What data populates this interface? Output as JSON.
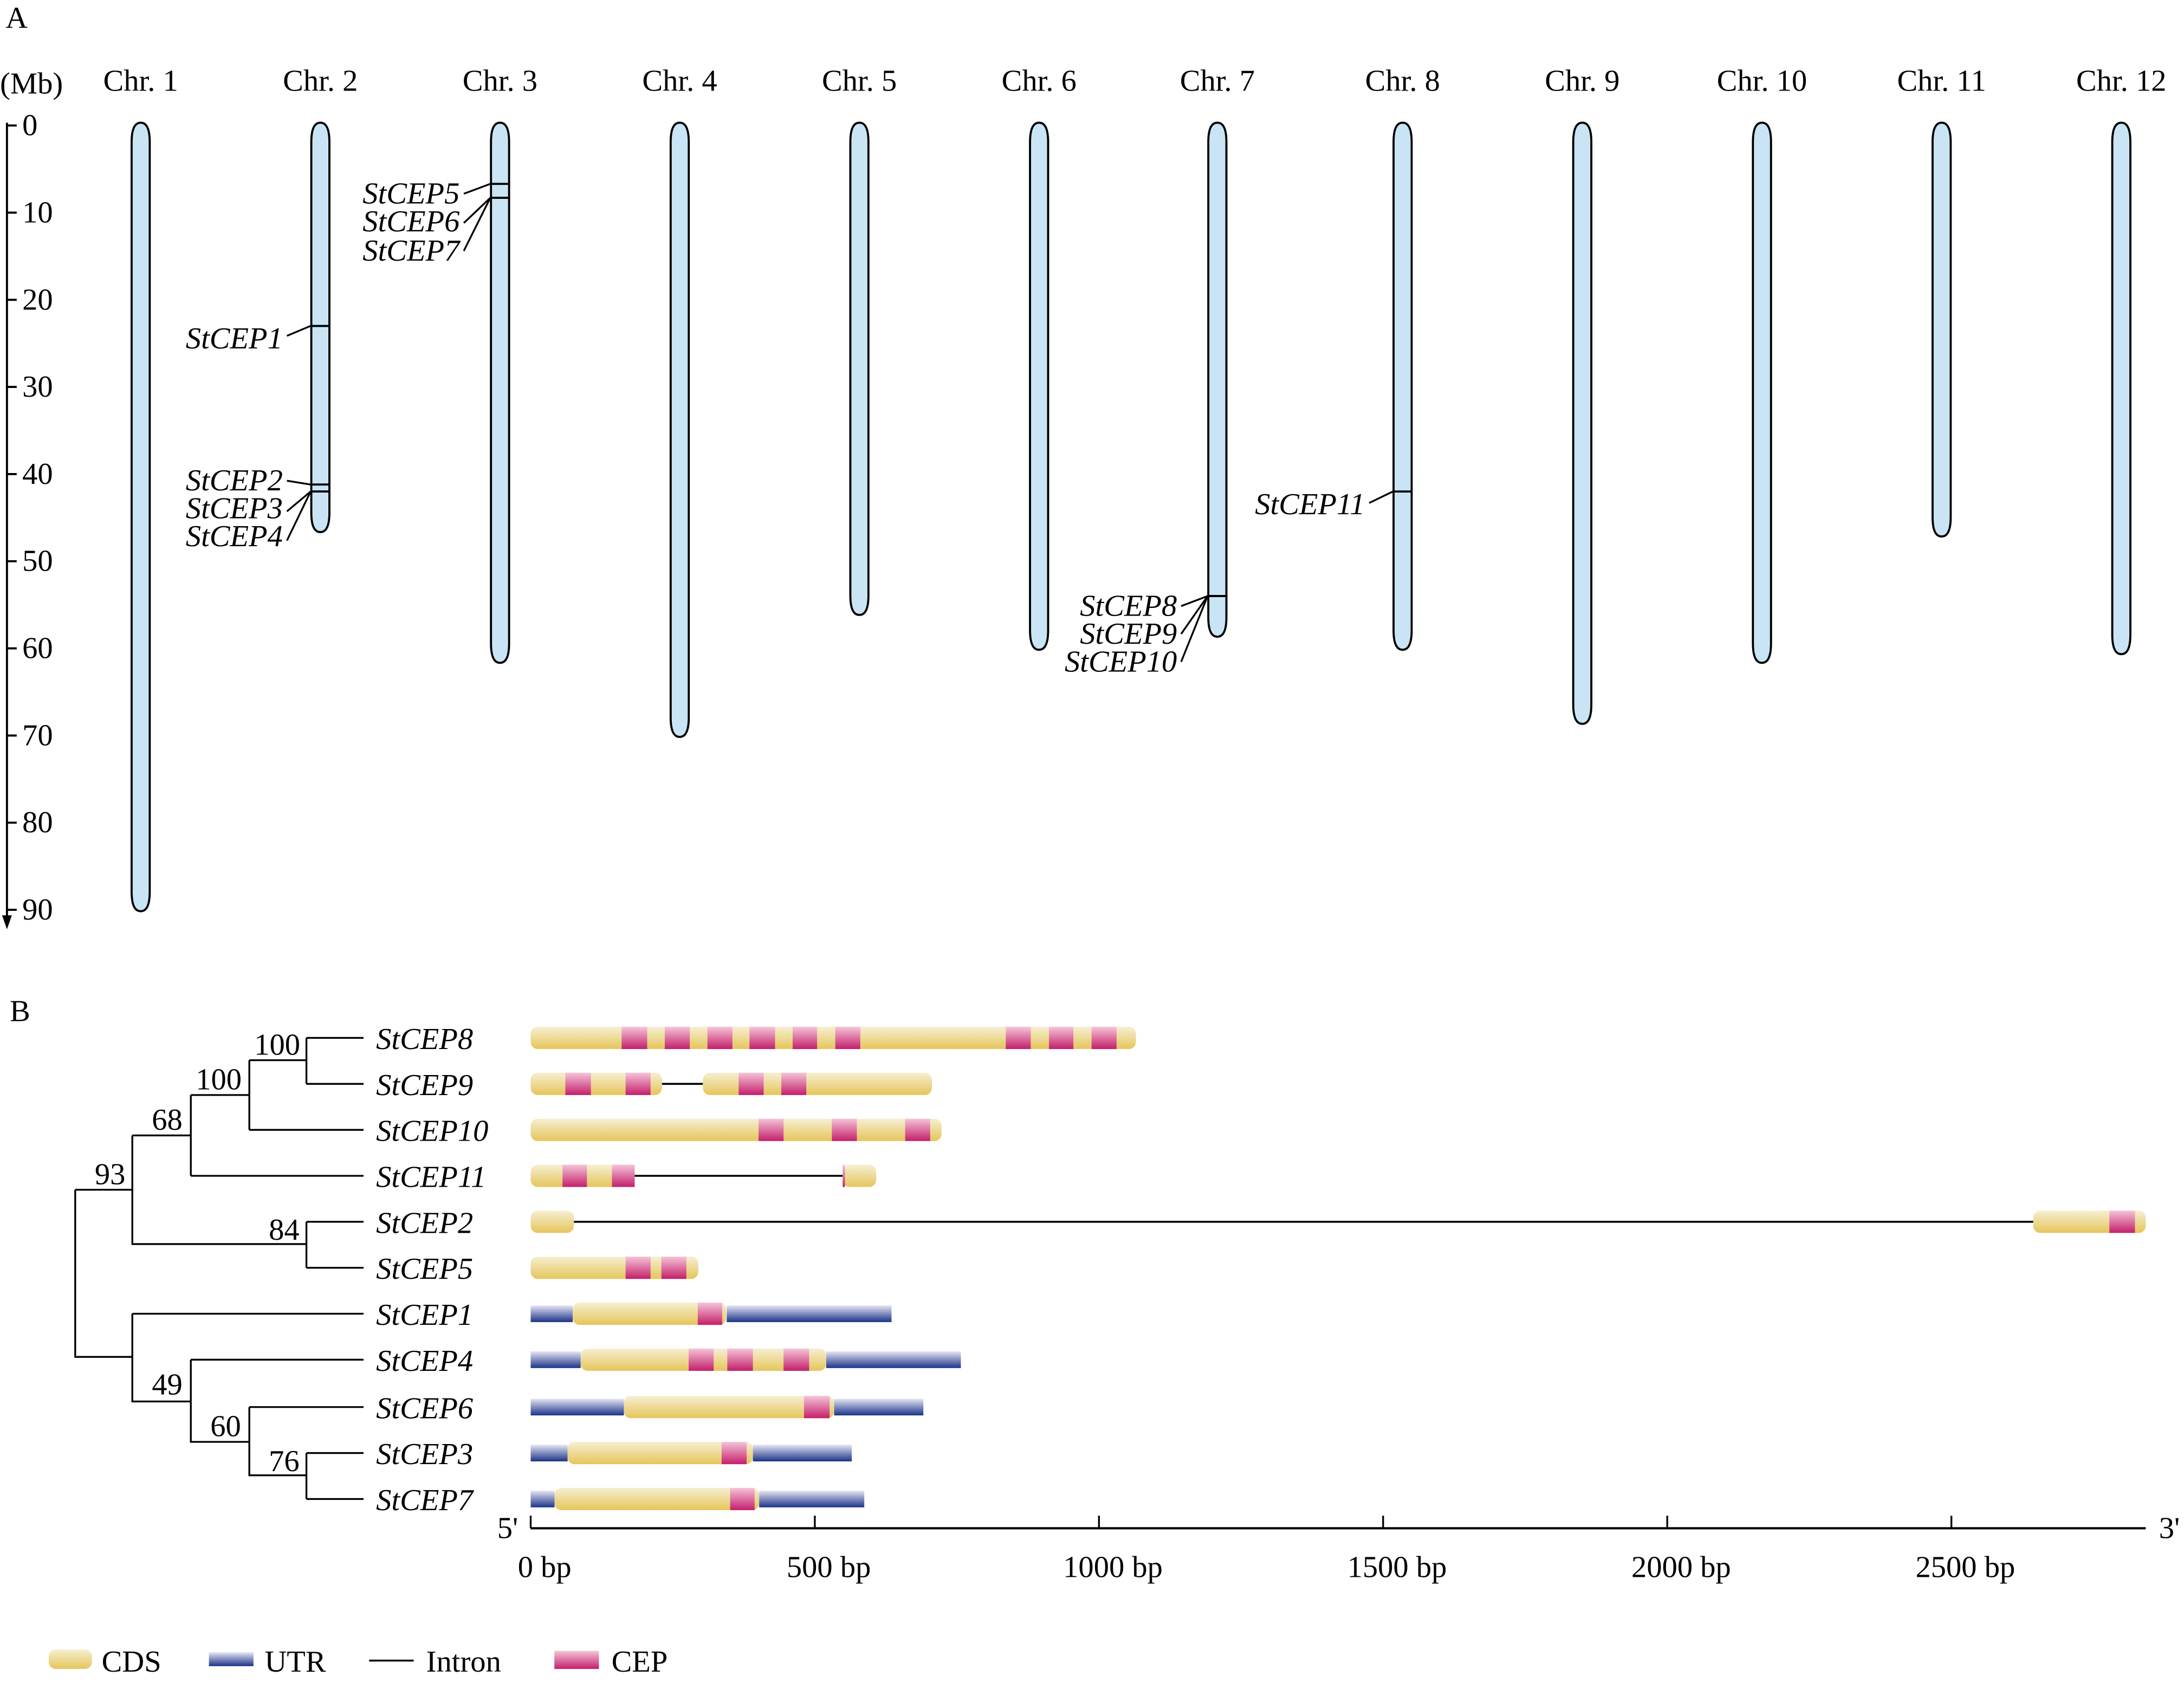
{
  "panels": {
    "a": "A",
    "b": "B"
  },
  "chromosome_map": {
    "unit_label": "(Mb)",
    "axis_ticks": [
      0,
      10,
      20,
      30,
      40,
      50,
      60,
      70,
      80,
      90
    ],
    "chromosomes": [
      {
        "label": "Chr. 1",
        "length_mb": 90
      },
      {
        "label": "Chr. 2",
        "length_mb": 46.5
      },
      {
        "label": "Chr. 3",
        "length_mb": 61.5
      },
      {
        "label": "Chr. 4",
        "length_mb": 70
      },
      {
        "label": "Chr. 5",
        "length_mb": 56
      },
      {
        "label": "Chr. 6",
        "length_mb": 60
      },
      {
        "label": "Chr. 7",
        "length_mb": 58.5
      },
      {
        "label": "Chr. 8",
        "length_mb": 60
      },
      {
        "label": "Chr. 9",
        "length_mb": 68.5
      },
      {
        "label": "Chr. 10",
        "length_mb": 61.5
      },
      {
        "label": "Chr. 11",
        "length_mb": 47
      },
      {
        "label": "Chr. 12",
        "length_mb": 60.5
      }
    ],
    "loci": [
      {
        "gene": "StCEP1",
        "chr": 2,
        "mb": 23
      },
      {
        "gene": "StCEP2",
        "chr": 2,
        "mb": 41.2
      },
      {
        "gene": "StCEP3",
        "chr": 2,
        "mb": 42
      },
      {
        "gene": "StCEP4",
        "chr": 2,
        "mb": 42
      },
      {
        "gene": "StCEP5",
        "chr": 3,
        "mb": 6.7
      },
      {
        "gene": "StCEP6",
        "chr": 3,
        "mb": 8.3
      },
      {
        "gene": "StCEP7",
        "chr": 3,
        "mb": 8.3
      },
      {
        "gene": "StCEP8",
        "chr": 7,
        "mb": 54
      },
      {
        "gene": "StCEP9",
        "chr": 7,
        "mb": 54
      },
      {
        "gene": "StCEP10",
        "chr": 7,
        "mb": 54
      },
      {
        "gene": "StCEP11",
        "chr": 8,
        "mb": 42
      }
    ]
  },
  "tree": {
    "leaves": [
      "StCEP8",
      "StCEP9",
      "StCEP10",
      "StCEP11",
      "StCEP2",
      "StCEP5",
      "StCEP1",
      "StCEP4",
      "StCEP6",
      "StCEP3",
      "StCEP7"
    ],
    "bootstrap": {
      "n89": "100",
      "n8910": "100",
      "n891011": "68",
      "n25": "84",
      "nA": "93",
      "n37": "76",
      "n637": "60",
      "n4637": "49"
    }
  },
  "gene_structure": {
    "axis": {
      "ticks": [
        0,
        500,
        1000,
        1500,
        2000,
        2500
      ],
      "tick_labels": [
        "0 bp",
        "500 bp",
        "1000 bp",
        "1500 bp",
        "2000 bp",
        "2500 bp"
      ],
      "max_bp": 2842,
      "five_prime": "5'",
      "three_prime": "3'"
    },
    "genes": [
      {
        "name": "StCEP8",
        "cds": [
          [
            0,
            1065
          ]
        ],
        "utr": [],
        "intron": [],
        "cep": [
          [
            160,
            205
          ],
          [
            236,
            280
          ],
          [
            311,
            355
          ],
          [
            385,
            430
          ],
          [
            461,
            504
          ],
          [
            536,
            580
          ],
          [
            836,
            880
          ],
          [
            912,
            955
          ],
          [
            987,
            1031
          ]
        ]
      },
      {
        "name": "StCEP9",
        "cds": [
          [
            0,
            231
          ],
          [
            303,
            706
          ]
        ],
        "utr": [],
        "intron": [
          [
            231,
            303
          ]
        ],
        "cep": [
          [
            61,
            106
          ],
          [
            167,
            211
          ],
          [
            366,
            410
          ],
          [
            441,
            485
          ]
        ]
      },
      {
        "name": "StCEP10",
        "cds": [
          [
            0,
            723
          ]
        ],
        "utr": [],
        "intron": [],
        "cep": [
          [
            401,
            445
          ],
          [
            530,
            574
          ],
          [
            659,
            703
          ]
        ]
      },
      {
        "name": "StCEP11",
        "cds": [
          [
            0,
            183
          ],
          [
            549,
            608
          ]
        ],
        "utr": [],
        "intron": [
          [
            183,
            549
          ]
        ],
        "cep": [
          [
            56,
            99
          ],
          [
            143,
            183
          ],
          [
            549,
            553
          ]
        ]
      },
      {
        "name": "StCEP2",
        "cds": [
          [
            0,
            76
          ],
          [
            2644,
            2842
          ]
        ],
        "utr": [],
        "intron": [
          [
            76,
            2644
          ]
        ],
        "cep": [
          [
            2778,
            2823
          ]
        ]
      },
      {
        "name": "StCEP5",
        "cds": [
          [
            0,
            295
          ]
        ],
        "utr": [],
        "intron": [],
        "cep": [
          [
            167,
            211
          ],
          [
            230,
            274
          ]
        ]
      },
      {
        "name": "StCEP1",
        "cds": [
          [
            74,
            344
          ]
        ],
        "utr": [
          [
            0,
            74
          ],
          [
            345,
            635
          ]
        ],
        "intron": [],
        "cep": [
          [
            294,
            337
          ]
        ]
      },
      {
        "name": "StCEP4",
        "cds": [
          [
            88,
            520
          ]
        ],
        "utr": [
          [
            0,
            88
          ],
          [
            520,
            757
          ]
        ],
        "intron": [],
        "cep": [
          [
            278,
            322
          ],
          [
            346,
            391
          ],
          [
            445,
            490
          ]
        ]
      },
      {
        "name": "StCEP6",
        "cds": [
          [
            164,
            534
          ]
        ],
        "utr": [
          [
            0,
            164
          ],
          [
            534,
            691
          ]
        ],
        "intron": [],
        "cep": [
          [
            481,
            526
          ]
        ]
      },
      {
        "name": "StCEP3",
        "cds": [
          [
            65,
            391
          ]
        ],
        "utr": [
          [
            0,
            65
          ],
          [
            391,
            565
          ]
        ],
        "intron": [],
        "cep": [
          [
            336,
            380
          ]
        ]
      },
      {
        "name": "StCEP7",
        "cds": [
          [
            42,
            402
          ]
        ],
        "utr": [
          [
            0,
            42
          ],
          [
            402,
            587
          ]
        ],
        "intron": [],
        "cep": [
          [
            351,
            394
          ]
        ]
      }
    ]
  },
  "legend": [
    {
      "key": "cds",
      "label": "CDS"
    },
    {
      "key": "utr",
      "label": "UTR"
    },
    {
      "key": "intron",
      "label": "Intron"
    },
    {
      "key": "cep",
      "label": "CEP"
    }
  ],
  "colors": {
    "chromosome": "#c9e5f5",
    "cds_top": "#f6efd2",
    "cds_bottom": "#e5c55a",
    "cep_top": "#f5c4d8",
    "cep_bottom": "#c41f6b",
    "utr_top": "#e6e6f4",
    "utr_bottom": "#1b3388"
  }
}
